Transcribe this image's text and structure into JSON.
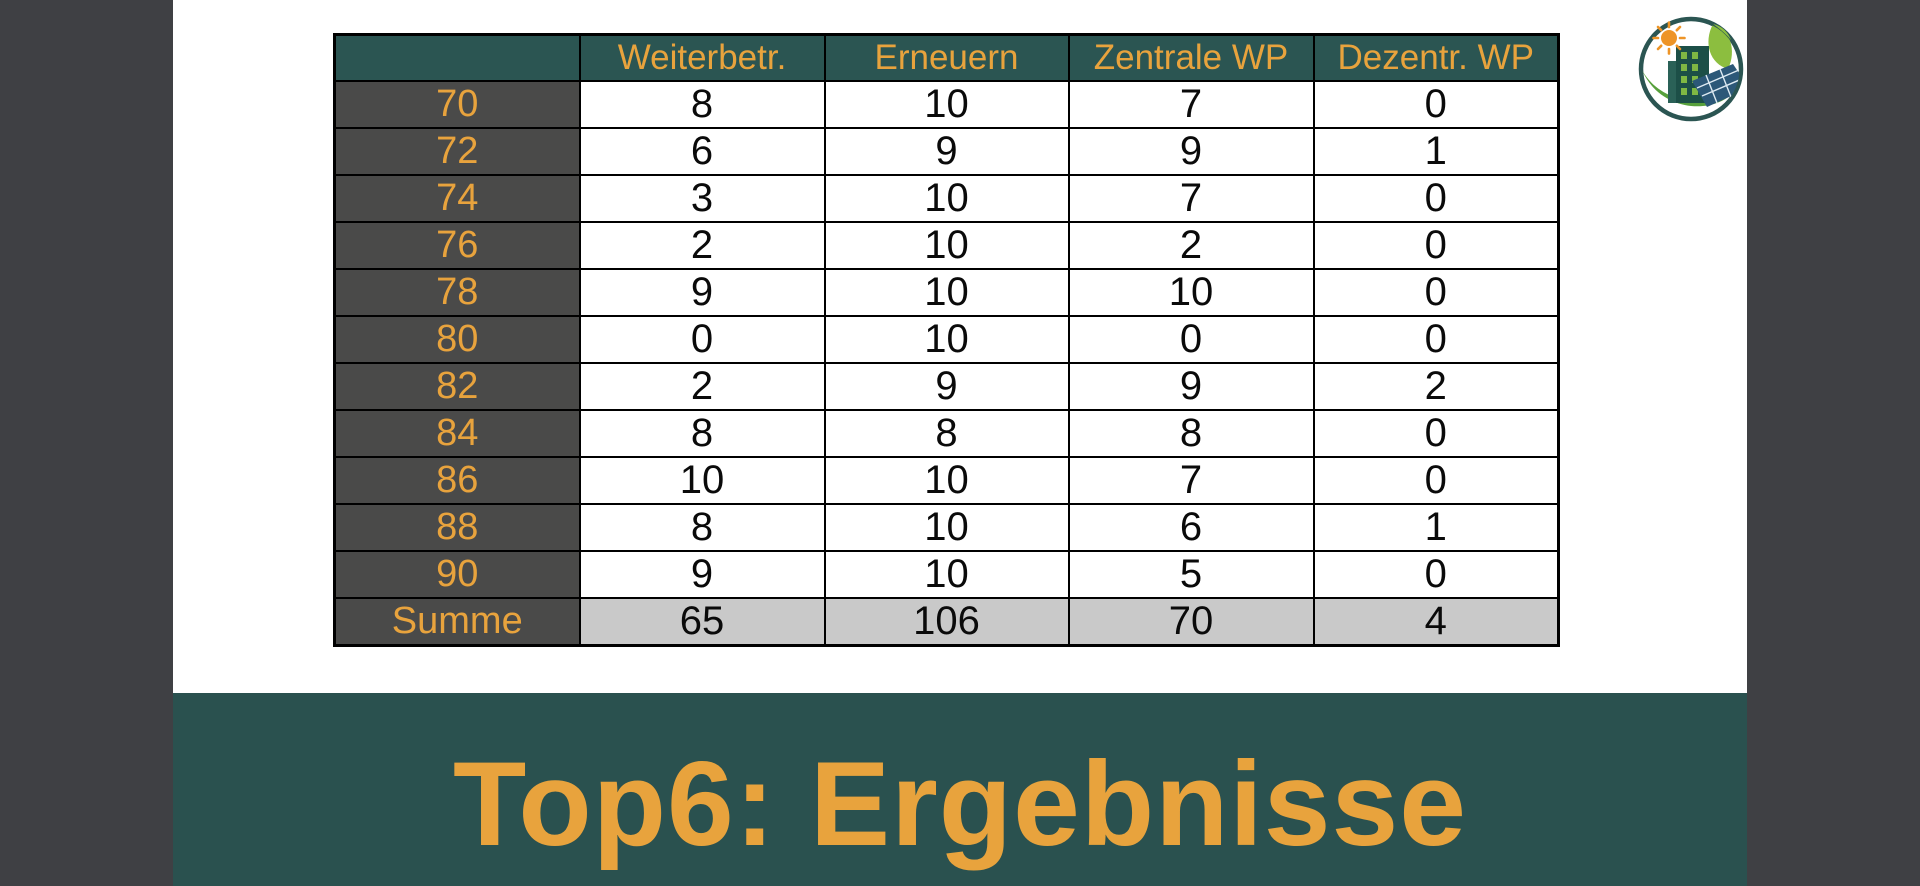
{
  "slide": {
    "table": {
      "corner_label": "",
      "columns": [
        "Weiterbetr.",
        "Erneuern",
        "Zentrale WP",
        "Dezentr. WP"
      ],
      "rows": [
        {
          "label": "70",
          "values": [
            "8",
            "10",
            "7",
            "0"
          ]
        },
        {
          "label": "72",
          "values": [
            "6",
            "9",
            "9",
            "1"
          ]
        },
        {
          "label": "74",
          "values": [
            "3",
            "10",
            "7",
            "0"
          ]
        },
        {
          "label": "76",
          "values": [
            "2",
            "10",
            "2",
            "0"
          ]
        },
        {
          "label": "78",
          "values": [
            "9",
            "10",
            "10",
            "0"
          ]
        },
        {
          "label": "80",
          "values": [
            "0",
            "10",
            "0",
            "0"
          ]
        },
        {
          "label": "82",
          "values": [
            "2",
            "9",
            "9",
            "2"
          ]
        },
        {
          "label": "84",
          "values": [
            "8",
            "8",
            "8",
            "0"
          ]
        },
        {
          "label": "86",
          "values": [
            "10",
            "10",
            "7",
            "0"
          ]
        },
        {
          "label": "88",
          "values": [
            "8",
            "10",
            "6",
            "1"
          ]
        },
        {
          "label": "90",
          "values": [
            "9",
            "10",
            "5",
            "0"
          ]
        }
      ],
      "summary": {
        "label": "Summe",
        "values": [
          "65",
          "106",
          "70",
          "4"
        ]
      }
    },
    "banner": {
      "title": "Top6: Ergebnisse"
    },
    "logo": "eco-city-sun-leaf-solar-logo"
  },
  "chart_data": {
    "type": "table",
    "columns": [
      "",
      "Weiterbetr.",
      "Erneuern",
      "Zentrale WP",
      "Dezentr. WP"
    ],
    "rows": [
      [
        "70",
        8,
        10,
        7,
        0
      ],
      [
        "72",
        6,
        9,
        9,
        1
      ],
      [
        "74",
        3,
        10,
        7,
        0
      ],
      [
        "76",
        2,
        10,
        2,
        0
      ],
      [
        "78",
        9,
        10,
        10,
        0
      ],
      [
        "80",
        0,
        10,
        0,
        0
      ],
      [
        "82",
        2,
        9,
        9,
        2
      ],
      [
        "84",
        8,
        8,
        8,
        0
      ],
      [
        "86",
        10,
        10,
        7,
        0
      ],
      [
        "88",
        8,
        10,
        6,
        1
      ],
      [
        "90",
        9,
        10,
        5,
        0
      ],
      [
        "Summe",
        65,
        106,
        70,
        4
      ]
    ],
    "title": "Top6: Ergebnisse"
  },
  "colors": {
    "accent_orange": "#E8A33D",
    "header_teal": "#2B5552",
    "banner_teal": "#2A514F",
    "side_gray": "#3F4044",
    "row_label_gray": "#4A4A49",
    "summary_gray": "#C9C9C9"
  }
}
